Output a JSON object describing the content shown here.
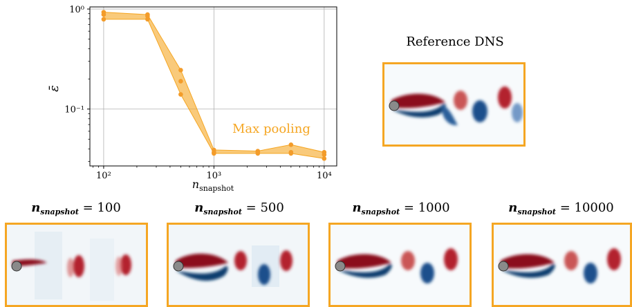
{
  "chart_data": {
    "type": "scatter",
    "x_scale": "log",
    "y_scale": "log",
    "xlim": [
      75,
      13000
    ],
    "ylim": [
      0.027,
      1.05
    ],
    "grid": true,
    "xticks": [
      100,
      1000,
      10000
    ],
    "yticks": [
      0.1,
      1
    ],
    "ylabel": "ε̄",
    "xlabel": "n_snapshot",
    "x_tick_labels": [
      "10²",
      "10³",
      "10⁴"
    ],
    "y_tick_labels": [
      "10⁻¹",
      "10⁰"
    ],
    "annotation": "Max pooling",
    "series_color": "#f5a623",
    "point_color": "#f39c2a",
    "points": [
      {
        "x": 100,
        "y": [
          0.93,
          0.88,
          0.79
        ]
      },
      {
        "x": 250,
        "y": [
          0.88,
          0.85,
          0.79
        ]
      },
      {
        "x": 500,
        "y": [
          0.245,
          0.19,
          0.14
        ]
      },
      {
        "x": 1000,
        "y": [
          0.039,
          0.037,
          0.036
        ]
      },
      {
        "x": 2500,
        "y": [
          0.038,
          0.037,
          0.036
        ]
      },
      {
        "x": 5000,
        "y": [
          0.044,
          0.037,
          0.036
        ]
      },
      {
        "x": 10000,
        "y": [
          0.037,
          0.035,
          0.032
        ]
      }
    ]
  },
  "reference": {
    "title": "Reference DNS"
  },
  "snapshot_panels": [
    {
      "label_prefix": "n",
      "label_sub": "snapshot",
      "label_value": "= 100"
    },
    {
      "label_prefix": "n",
      "label_sub": "snapshot",
      "label_value": "= 500"
    },
    {
      "label_prefix": "n",
      "label_sub": "snapshot",
      "label_value": "= 1000"
    },
    {
      "label_prefix": "n",
      "label_sub": "snapshot",
      "label_value": "= 10000"
    }
  ]
}
